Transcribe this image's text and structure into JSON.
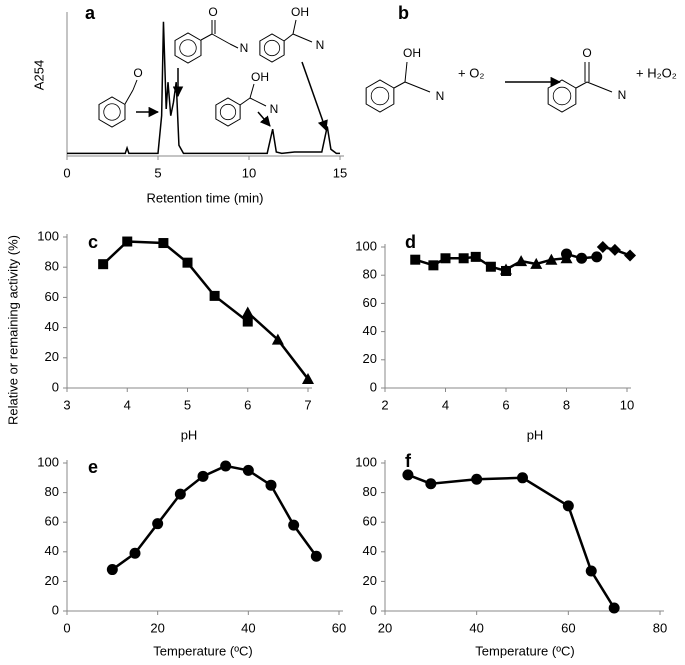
{
  "chart_data": [
    {
      "type": "line",
      "label": "a",
      "xlabel": "Retention time (min)",
      "ylabel": "A254",
      "color": "#000000",
      "x": [
        0,
        3.2,
        3.3,
        3.4,
        5.0,
        5.2,
        5.3,
        5.45,
        5.55,
        5.7,
        5.85,
        6.0,
        6.15,
        6.4,
        11.0,
        11.3,
        11.5,
        11.8,
        12.5,
        14.0,
        14.3,
        14.5,
        14.8,
        15
      ],
      "values": [
        0.02,
        0.02,
        0.06,
        0.02,
        0.02,
        0.3,
        1.0,
        0.35,
        0.55,
        0.3,
        0.4,
        0.55,
        0.08,
        0.02,
        0.02,
        0.2,
        0.03,
        0.02,
        0.03,
        0.03,
        0.22,
        0.05,
        0.02,
        0.02
      ],
      "xlim": [
        0,
        15
      ],
      "xticks": [
        0,
        5,
        10,
        15
      ],
      "ylim": [
        0,
        1.05
      ],
      "annotations": [
        "O",
        "O",
        "N",
        "OH",
        "N",
        "OH",
        "N"
      ]
    },
    {
      "type": "scatter",
      "label": "c",
      "xlabel": "pH",
      "ylabel": "Relative or remaining activity (%)",
      "xlim": [
        3,
        7
      ],
      "xticks": [
        3,
        4,
        5,
        6,
        7
      ],
      "ylim": [
        0,
        100
      ],
      "yticks": [
        0,
        20,
        40,
        60,
        80,
        100
      ],
      "series": [
        {
          "marker": "square",
          "color": "#000000",
          "x": [
            3.6,
            4.0,
            4.6,
            5.0,
            5.45,
            6.0
          ],
          "values": [
            82,
            97,
            96,
            83,
            61,
            44
          ]
        },
        {
          "marker": "triangle",
          "color": "#000000",
          "x": [
            6.0,
            6.5,
            7.0
          ],
          "values": [
            50,
            32,
            6
          ]
        }
      ]
    },
    {
      "type": "scatter",
      "label": "d",
      "xlabel": "pH",
      "xlim": [
        2,
        10
      ],
      "xticks": [
        2,
        4,
        6,
        8,
        10
      ],
      "ylim": [
        0,
        100
      ],
      "yticks": [
        0,
        20,
        40,
        60,
        80,
        100
      ],
      "series": [
        {
          "marker": "square",
          "color": "#000000",
          "x": [
            3,
            3.6,
            4,
            4.6,
            5,
            5.5,
            6
          ],
          "values": [
            91,
            87,
            92,
            92,
            93,
            86,
            83
          ]
        },
        {
          "marker": "triangle",
          "color": "#000000",
          "x": [
            6,
            6.5,
            7,
            7.5,
            8
          ],
          "values": [
            84,
            90,
            88,
            91,
            92
          ]
        },
        {
          "marker": "circle",
          "color": "#000000",
          "x": [
            8,
            8.5,
            9
          ],
          "values": [
            95,
            92,
            93
          ]
        },
        {
          "marker": "diamond",
          "color": "#000000",
          "x": [
            9.2,
            9.6,
            10.1
          ],
          "values": [
            100,
            98,
            94
          ]
        }
      ]
    },
    {
      "type": "scatter",
      "label": "e",
      "xlabel": "Temperature (ºC)",
      "xlim": [
        0,
        60
      ],
      "xticks": [
        0,
        20,
        40,
        60
      ],
      "ylim": [
        0,
        100
      ],
      "yticks": [
        0,
        20,
        40,
        60,
        80,
        100
      ],
      "series": [
        {
          "marker": "circle",
          "color": "#000000",
          "x": [
            10,
            15,
            20,
            25,
            30,
            35,
            40,
            45,
            50,
            55
          ],
          "values": [
            28,
            39,
            59,
            79,
            91,
            98,
            95,
            85,
            58,
            37
          ]
        }
      ]
    },
    {
      "type": "scatter",
      "label": "f",
      "xlabel": "Temperature (ºC)",
      "xlim": [
        20,
        80
      ],
      "xticks": [
        20,
        40,
        60,
        80
      ],
      "ylim": [
        0,
        100
      ],
      "yticks": [
        0,
        20,
        40,
        60,
        80,
        100
      ],
      "series": [
        {
          "marker": "circle",
          "color": "#000000",
          "x": [
            25,
            30,
            40,
            50,
            60,
            65,
            70
          ],
          "values": [
            92,
            86,
            89,
            90,
            71,
            27,
            2
          ]
        }
      ]
    }
  ],
  "scheme": {
    "label": "b",
    "annotations": [
      "OH",
      "N",
      "+ O₂",
      "O",
      "N",
      "+ H₂O₂"
    ]
  }
}
